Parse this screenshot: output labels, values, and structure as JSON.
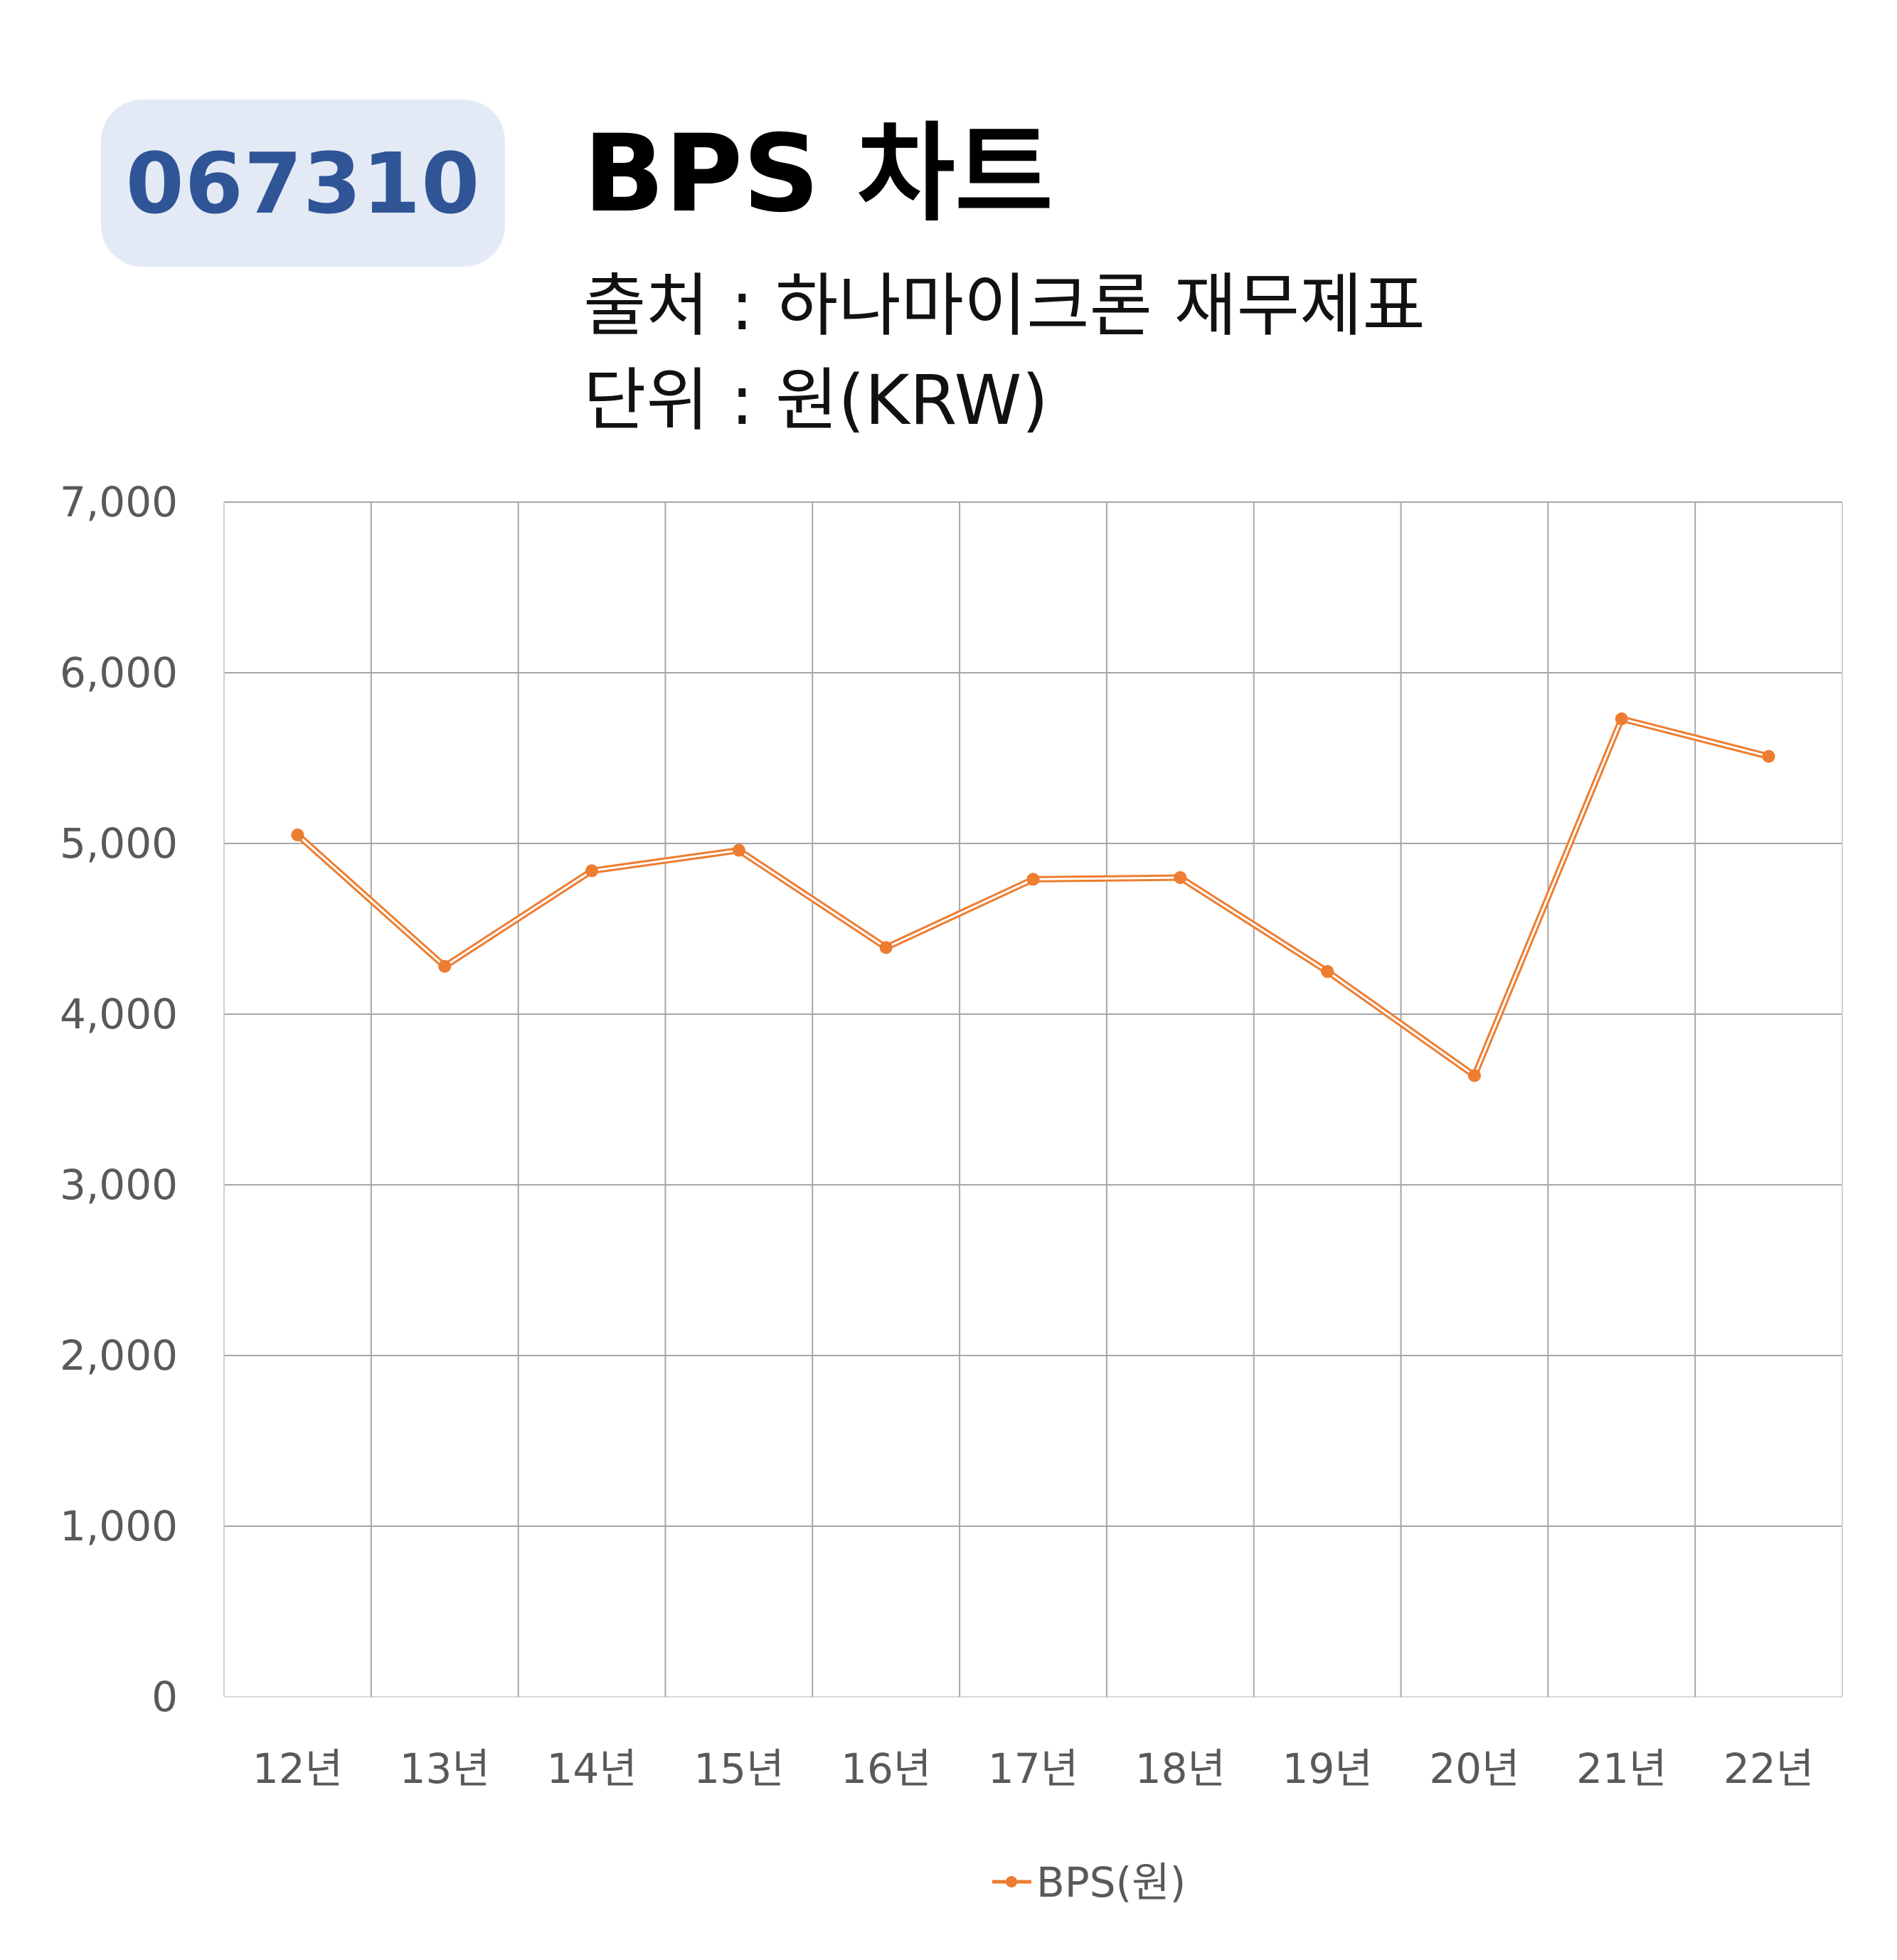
{
  "header": {
    "code": "067310",
    "title": "BPS 차트",
    "source": "출처 : 하나마이크론 재무제표",
    "unit": "단위 : 원(KRW)"
  },
  "colors": {
    "line": "#ed7d31",
    "grid": "#a6a6a6",
    "badge_bg": "#e4eaf5",
    "badge_text": "#2f5597"
  },
  "chart_data": {
    "type": "line",
    "categories": [
      "12년",
      "13년",
      "14년",
      "15년",
      "16년",
      "17년",
      "18년",
      "19년",
      "20년",
      "21년",
      "22년"
    ],
    "series": [
      {
        "name": "BPS(원)",
        "values": [
          5050,
          4280,
          4840,
          4960,
          4390,
          4790,
          4800,
          4250,
          3640,
          5730,
          5510
        ]
      }
    ],
    "ylim": [
      0,
      7000
    ],
    "yticks": [
      0,
      1000,
      2000,
      3000,
      4000,
      5000,
      6000,
      7000
    ],
    "ytick_labels": [
      "0",
      "1,000",
      "2,000",
      "3,000",
      "4,000",
      "5,000",
      "6,000",
      "7,000"
    ],
    "grid": true,
    "legend_position": "bottom"
  }
}
